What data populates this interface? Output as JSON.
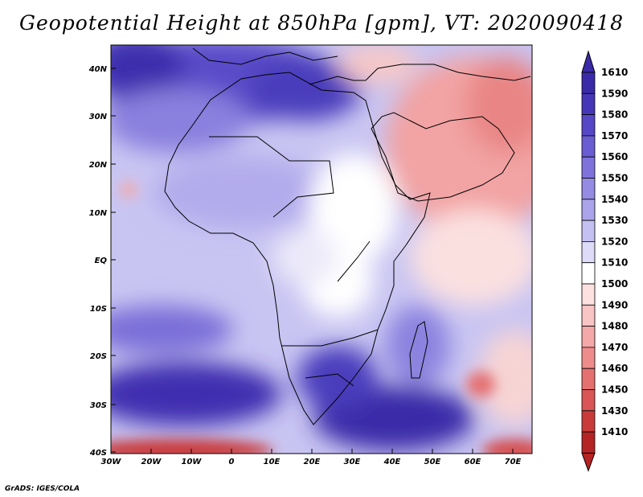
{
  "title": "Geopotential Height at 850hPa [gpm], VT: 2020090418",
  "credit": "GrADS: IGES/COLA",
  "map": {
    "lat_labels": [
      "40N",
      "30N",
      "20N",
      "10N",
      "EQ",
      "10S",
      "20S",
      "30S",
      "40S"
    ],
    "lon_labels": [
      "30W",
      "20W",
      "10W",
      "0",
      "10E",
      "20E",
      "30E",
      "40E",
      "50E",
      "60E",
      "70E"
    ]
  },
  "colorbar": {
    "levels": [
      "1610",
      "1590",
      "1580",
      "1570",
      "1560",
      "1550",
      "1540",
      "1530",
      "1520",
      "1510",
      "1500",
      "1490",
      "1480",
      "1470",
      "1460",
      "1450",
      "1430",
      "1410"
    ],
    "colors": [
      "#3b2aa8",
      "#4536b8",
      "#5647c6",
      "#6a5cd2",
      "#7f73db",
      "#958be3",
      "#aba4ea",
      "#c4c0f1",
      "#dddbf7",
      "#ffffff",
      "#fde0e0",
      "#f9c4c4",
      "#f4a8a8",
      "#ee8c8c",
      "#e57070",
      "#da5555",
      "#c93b3b",
      "#b52424"
    ]
  }
}
